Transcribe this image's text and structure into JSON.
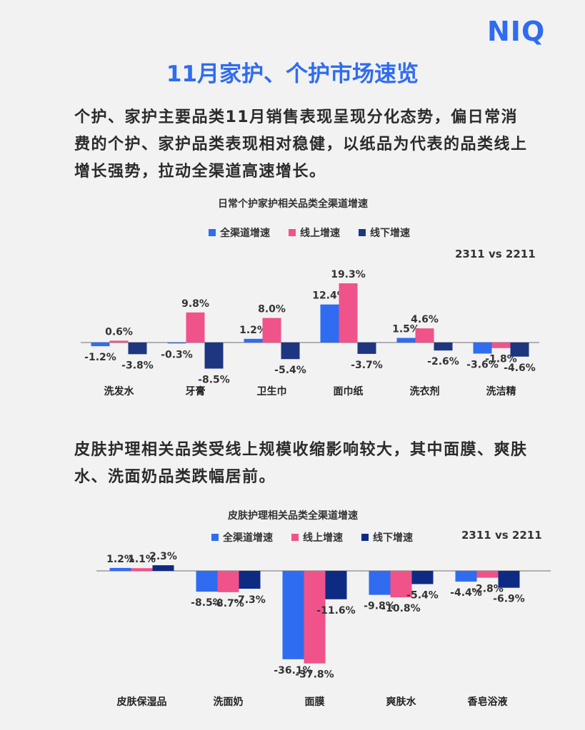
{
  "brand": {
    "logo_text": "NIQ",
    "color": "#2f6cf0"
  },
  "title": "11月家护、个护市场速览",
  "paragraph1": "个护、家护主要品类11月销售表现呈现分化态势，偏日常消费的个护、家护品类表现相对稳健，以纸品为代表的品类线上增长强势，拉动全渠道高速增长。",
  "paragraph2": "皮肤护理相关品类受线上规模收缩影响较大，其中面膜、爽肤水、洗面奶品类跌幅居前。",
  "colors": {
    "all_channel": "#2f6cf0",
    "online": "#f0528a",
    "offline": "#1e3680",
    "offline2": "#0e2b84"
  },
  "chart_data": [
    {
      "type": "bar",
      "title": "日常个护家护相关品类全渠道增速",
      "period": "2311 vs 2211",
      "categories": [
        "洗发水",
        "牙膏",
        "卫生巾",
        "面巾纸",
        "洗衣剂",
        "洗洁精"
      ],
      "series": [
        {
          "name": "全渠道增速",
          "values": [
            -1.2,
            -0.3,
            1.2,
            12.4,
            1.5,
            -3.6
          ]
        },
        {
          "name": "线上增速",
          "values": [
            0.6,
            9.8,
            8.0,
            19.3,
            4.6,
            -1.8
          ]
        },
        {
          "name": "线下增速",
          "values": [
            -3.8,
            -8.5,
            -5.4,
            -3.7,
            -2.6,
            -4.6
          ]
        }
      ],
      "labels": [
        [
          "-1.2%",
          "-0.3%",
          "1.2%",
          "12.4%",
          "1.5%",
          "-3.6%"
        ],
        [
          "0.6%",
          "9.8%",
          "8.0%",
          "19.3%",
          "4.6%",
          "-1.8%"
        ],
        [
          "-3.8%",
          "-8.5%",
          "-5.4%",
          "-3.7%",
          "-2.6%",
          "-4.6%"
        ]
      ]
    },
    {
      "type": "bar",
      "title": "皮肤护理相关品类全渠道增速",
      "period": "2311 vs 2211",
      "categories": [
        "皮肤保湿品",
        "洗面奶",
        "面膜",
        "爽肤水",
        "香皂浴液"
      ],
      "series": [
        {
          "name": "全渠道增速",
          "values": [
            1.2,
            -8.5,
            -36.1,
            -9.8,
            -4.4
          ]
        },
        {
          "name": "线上增速",
          "values": [
            1.1,
            -8.7,
            -37.8,
            -10.8,
            -2.8
          ]
        },
        {
          "name": "线下增速",
          "values": [
            2.3,
            -7.3,
            -11.6,
            -5.4,
            -6.9
          ]
        }
      ],
      "labels": [
        [
          "1.2%",
          "-8.5%",
          "-36.1%",
          "-9.8%",
          "-4.4%"
        ],
        [
          "1.1%",
          "-8.7%",
          "-37.8%",
          "-10.8%",
          "-2.8%"
        ],
        [
          "2.3%",
          "-7.3%",
          "-11.6%",
          "-5.4%",
          "-6.9%"
        ]
      ]
    }
  ]
}
